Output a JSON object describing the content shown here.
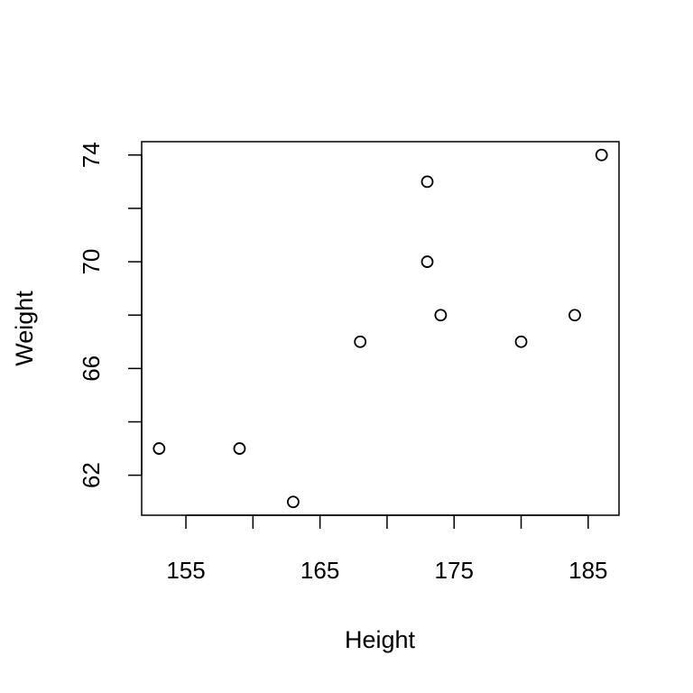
{
  "chart_data": {
    "type": "scatter",
    "title": "",
    "xlabel": "Height",
    "ylabel": "Weight",
    "xlim": [
      151.7,
      187.3
    ],
    "ylim": [
      60.5,
      74.5
    ],
    "grid": false,
    "x_ticks": [
      155,
      160,
      165,
      170,
      175,
      180,
      185
    ],
    "x_tick_labels": [
      "155",
      "",
      "165",
      "",
      "175",
      "",
      "185"
    ],
    "y_ticks": [
      62,
      64,
      66,
      68,
      70,
      72,
      74
    ],
    "y_tick_labels": [
      "62",
      "",
      "66",
      "",
      "70",
      "",
      "74"
    ],
    "points": [
      {
        "x": 153,
        "y": 63
      },
      {
        "x": 159,
        "y": 63
      },
      {
        "x": 163,
        "y": 61
      },
      {
        "x": 168,
        "y": 67
      },
      {
        "x": 173,
        "y": 73
      },
      {
        "x": 173,
        "y": 70
      },
      {
        "x": 174,
        "y": 68
      },
      {
        "x": 180,
        "y": 67
      },
      {
        "x": 184,
        "y": 68
      },
      {
        "x": 186,
        "y": 74
      }
    ]
  }
}
